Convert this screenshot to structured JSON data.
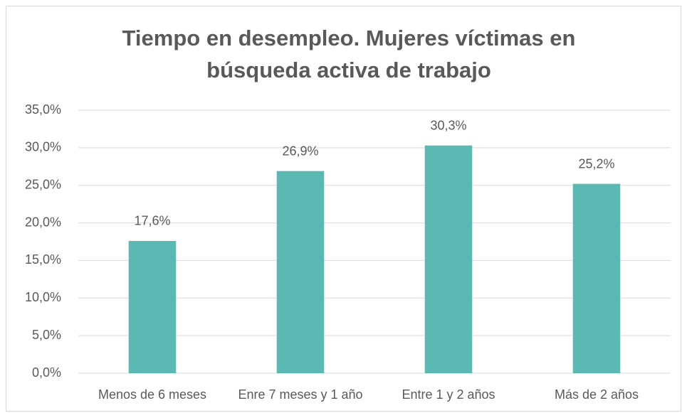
{
  "chart_data": {
    "type": "bar",
    "title": [
      "Tiempo en desempleo. Mujeres víctimas en",
      "búsqueda activa de trabajo"
    ],
    "categories": [
      "Menos de 6 meses",
      "Enre 7 meses y 1 año",
      "Entre 1 y 2 años",
      "Más de 2 años"
    ],
    "values": [
      17.6,
      26.9,
      30.3,
      25.2
    ],
    "value_labels": [
      "17,6%",
      "26,9%",
      "30,3%",
      "25,2%"
    ],
    "color": "#5cb8b2",
    "ylim": [
      0,
      35
    ],
    "yticks": [
      {
        "value": 0,
        "label": "0,0%"
      },
      {
        "value": 5,
        "label": "5,0%"
      },
      {
        "value": 10,
        "label": "10,0%"
      },
      {
        "value": 15,
        "label": "15,0%"
      },
      {
        "value": 20,
        "label": "20,0%"
      },
      {
        "value": 25,
        "label": "25,0%"
      },
      {
        "value": 30,
        "label": "30,0%"
      },
      {
        "value": 35,
        "label": "35,0%"
      }
    ],
    "grid": true
  }
}
